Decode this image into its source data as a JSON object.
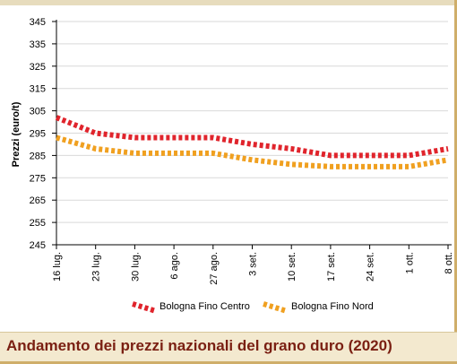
{
  "caption": "Andamento dei prezzi nazionali del grano duro (2020)",
  "chart_data": {
    "type": "line",
    "title": "",
    "ylabel": "Prezzi (euro/t)",
    "xlabel": "",
    "categories": [
      "16 lug.",
      "23 lug.",
      "30 lug.",
      "6 ago.",
      "27 ago.",
      "3 set.",
      "10 set.",
      "17 set.",
      "24 set.",
      "1 ott.",
      "8 ott."
    ],
    "yticks": [
      245,
      255,
      265,
      275,
      285,
      295,
      305,
      315,
      325,
      335,
      345
    ],
    "ylim": [
      245,
      345
    ],
    "grid": true,
    "legend_position": "bottom",
    "series": [
      {
        "name": "Bologna Fino Centro",
        "color": "#e0242c",
        "values": [
          302,
          295,
          293,
          293,
          293,
          290,
          288,
          285,
          285,
          285,
          288
        ]
      },
      {
        "name": "Bologna Fino Nord",
        "color": "#f0a020",
        "values": [
          293,
          288,
          286,
          286,
          286,
          283,
          281,
          280,
          280,
          280,
          283
        ]
      }
    ]
  }
}
